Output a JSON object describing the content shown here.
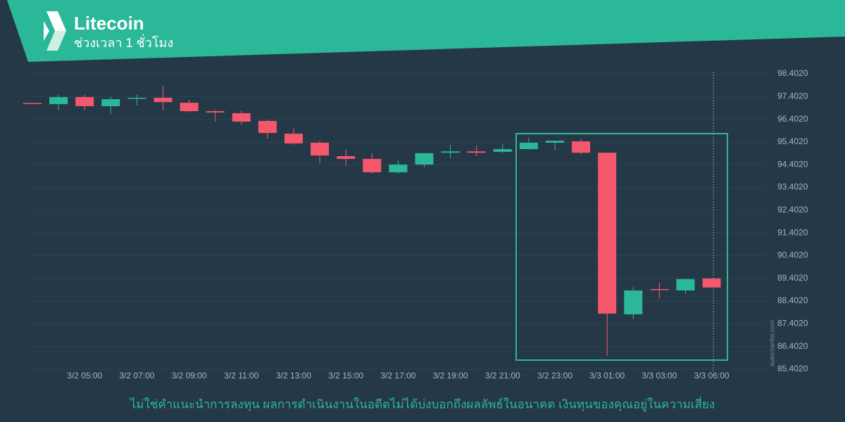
{
  "header": {
    "title": "Litecoin",
    "subtitle": "ช่วงเวลา 1 ชั่วโมง"
  },
  "chart_data": {
    "type": "candlestick",
    "categories": [
      null,
      null,
      "3/2 05:00",
      null,
      "3/2 07:00",
      null,
      "3/2 09:00",
      null,
      "3/2 11:00",
      null,
      "3/2 13:00",
      null,
      "3/2 15:00",
      null,
      "3/2 17:00",
      null,
      "3/2 19:00",
      null,
      "3/2 21:00",
      null,
      "3/2 23:00",
      null,
      "3/3 01:00",
      null,
      "3/3 03:00",
      null,
      "3/3 06:00"
    ],
    "open": [
      97.12,
      97.07,
      97.38,
      96.98,
      97.31,
      97.35,
      97.13,
      96.76,
      96.67,
      96.33,
      95.77,
      95.37,
      94.78,
      94.66,
      94.07,
      94.41,
      94.93,
      94.99,
      94.97,
      95.09,
      95.37,
      95.43,
      94.93,
      87.82,
      88.93,
      88.87,
      89.4
    ],
    "high": [
      97.13,
      97.47,
      97.5,
      97.41,
      97.5,
      97.88,
      97.26,
      96.82,
      96.79,
      96.39,
      96.02,
      95.46,
      95.09,
      94.91,
      94.6,
      94.91,
      95.28,
      95.25,
      95.31,
      95.59,
      95.46,
      95.55,
      94.93,
      89.02,
      89.21,
      89.37,
      89.4
    ],
    "low": [
      97.07,
      96.79,
      96.79,
      96.64,
      97.01,
      96.79,
      96.7,
      96.3,
      96.17,
      95.55,
      95.28,
      94.44,
      94.35,
      94.01,
      94.01,
      94.29,
      94.69,
      94.78,
      94.93,
      95.06,
      95.03,
      94.87,
      86.0,
      87.6,
      88.53,
      88.71,
      89.0
    ],
    "close": [
      97.08,
      97.38,
      96.98,
      97.29,
      97.35,
      97.16,
      96.76,
      96.7,
      96.3,
      95.8,
      95.34,
      94.81,
      94.66,
      94.07,
      94.41,
      94.91,
      94.99,
      94.93,
      95.09,
      95.37,
      95.46,
      94.93,
      87.85,
      88.87,
      88.9,
      89.37,
      89.0
    ],
    "up_color": "#2bb898",
    "down_color": "#f5576c",
    "ylim": [
      85.402,
      98.402
    ],
    "yticks": [
      {
        "value": 85.402,
        "label": "85.4020"
      },
      {
        "value": 86.402,
        "label": "86.4020"
      },
      {
        "value": 87.402,
        "label": "87.4020"
      },
      {
        "value": 88.402,
        "label": "88.4020"
      },
      {
        "value": 89.402,
        "label": "89.4020"
      },
      {
        "value": 90.402,
        "label": "90.4020"
      },
      {
        "value": 91.402,
        "label": "91.4020"
      },
      {
        "value": 92.402,
        "label": "92.4020"
      },
      {
        "value": 93.402,
        "label": "93.4020"
      },
      {
        "value": 94.402,
        "label": "94.4020"
      },
      {
        "value": 95.402,
        "label": "95.4020"
      },
      {
        "value": 96.402,
        "label": "96.4020"
      },
      {
        "value": 97.402,
        "label": "97.4020"
      },
      {
        "value": 98.402,
        "label": "98.4020"
      }
    ],
    "grid": true
  },
  "watermark": "autochartist.com",
  "disclaimer": "ไม่ใช่คำแนะนำการลงทุน ผลการดำเนินงานในอดีตไม่ได้บ่งบอกถึงผลลัพธ์ในอนาคต เงินทุนของคุณอยู่ในความเสี่ยง"
}
